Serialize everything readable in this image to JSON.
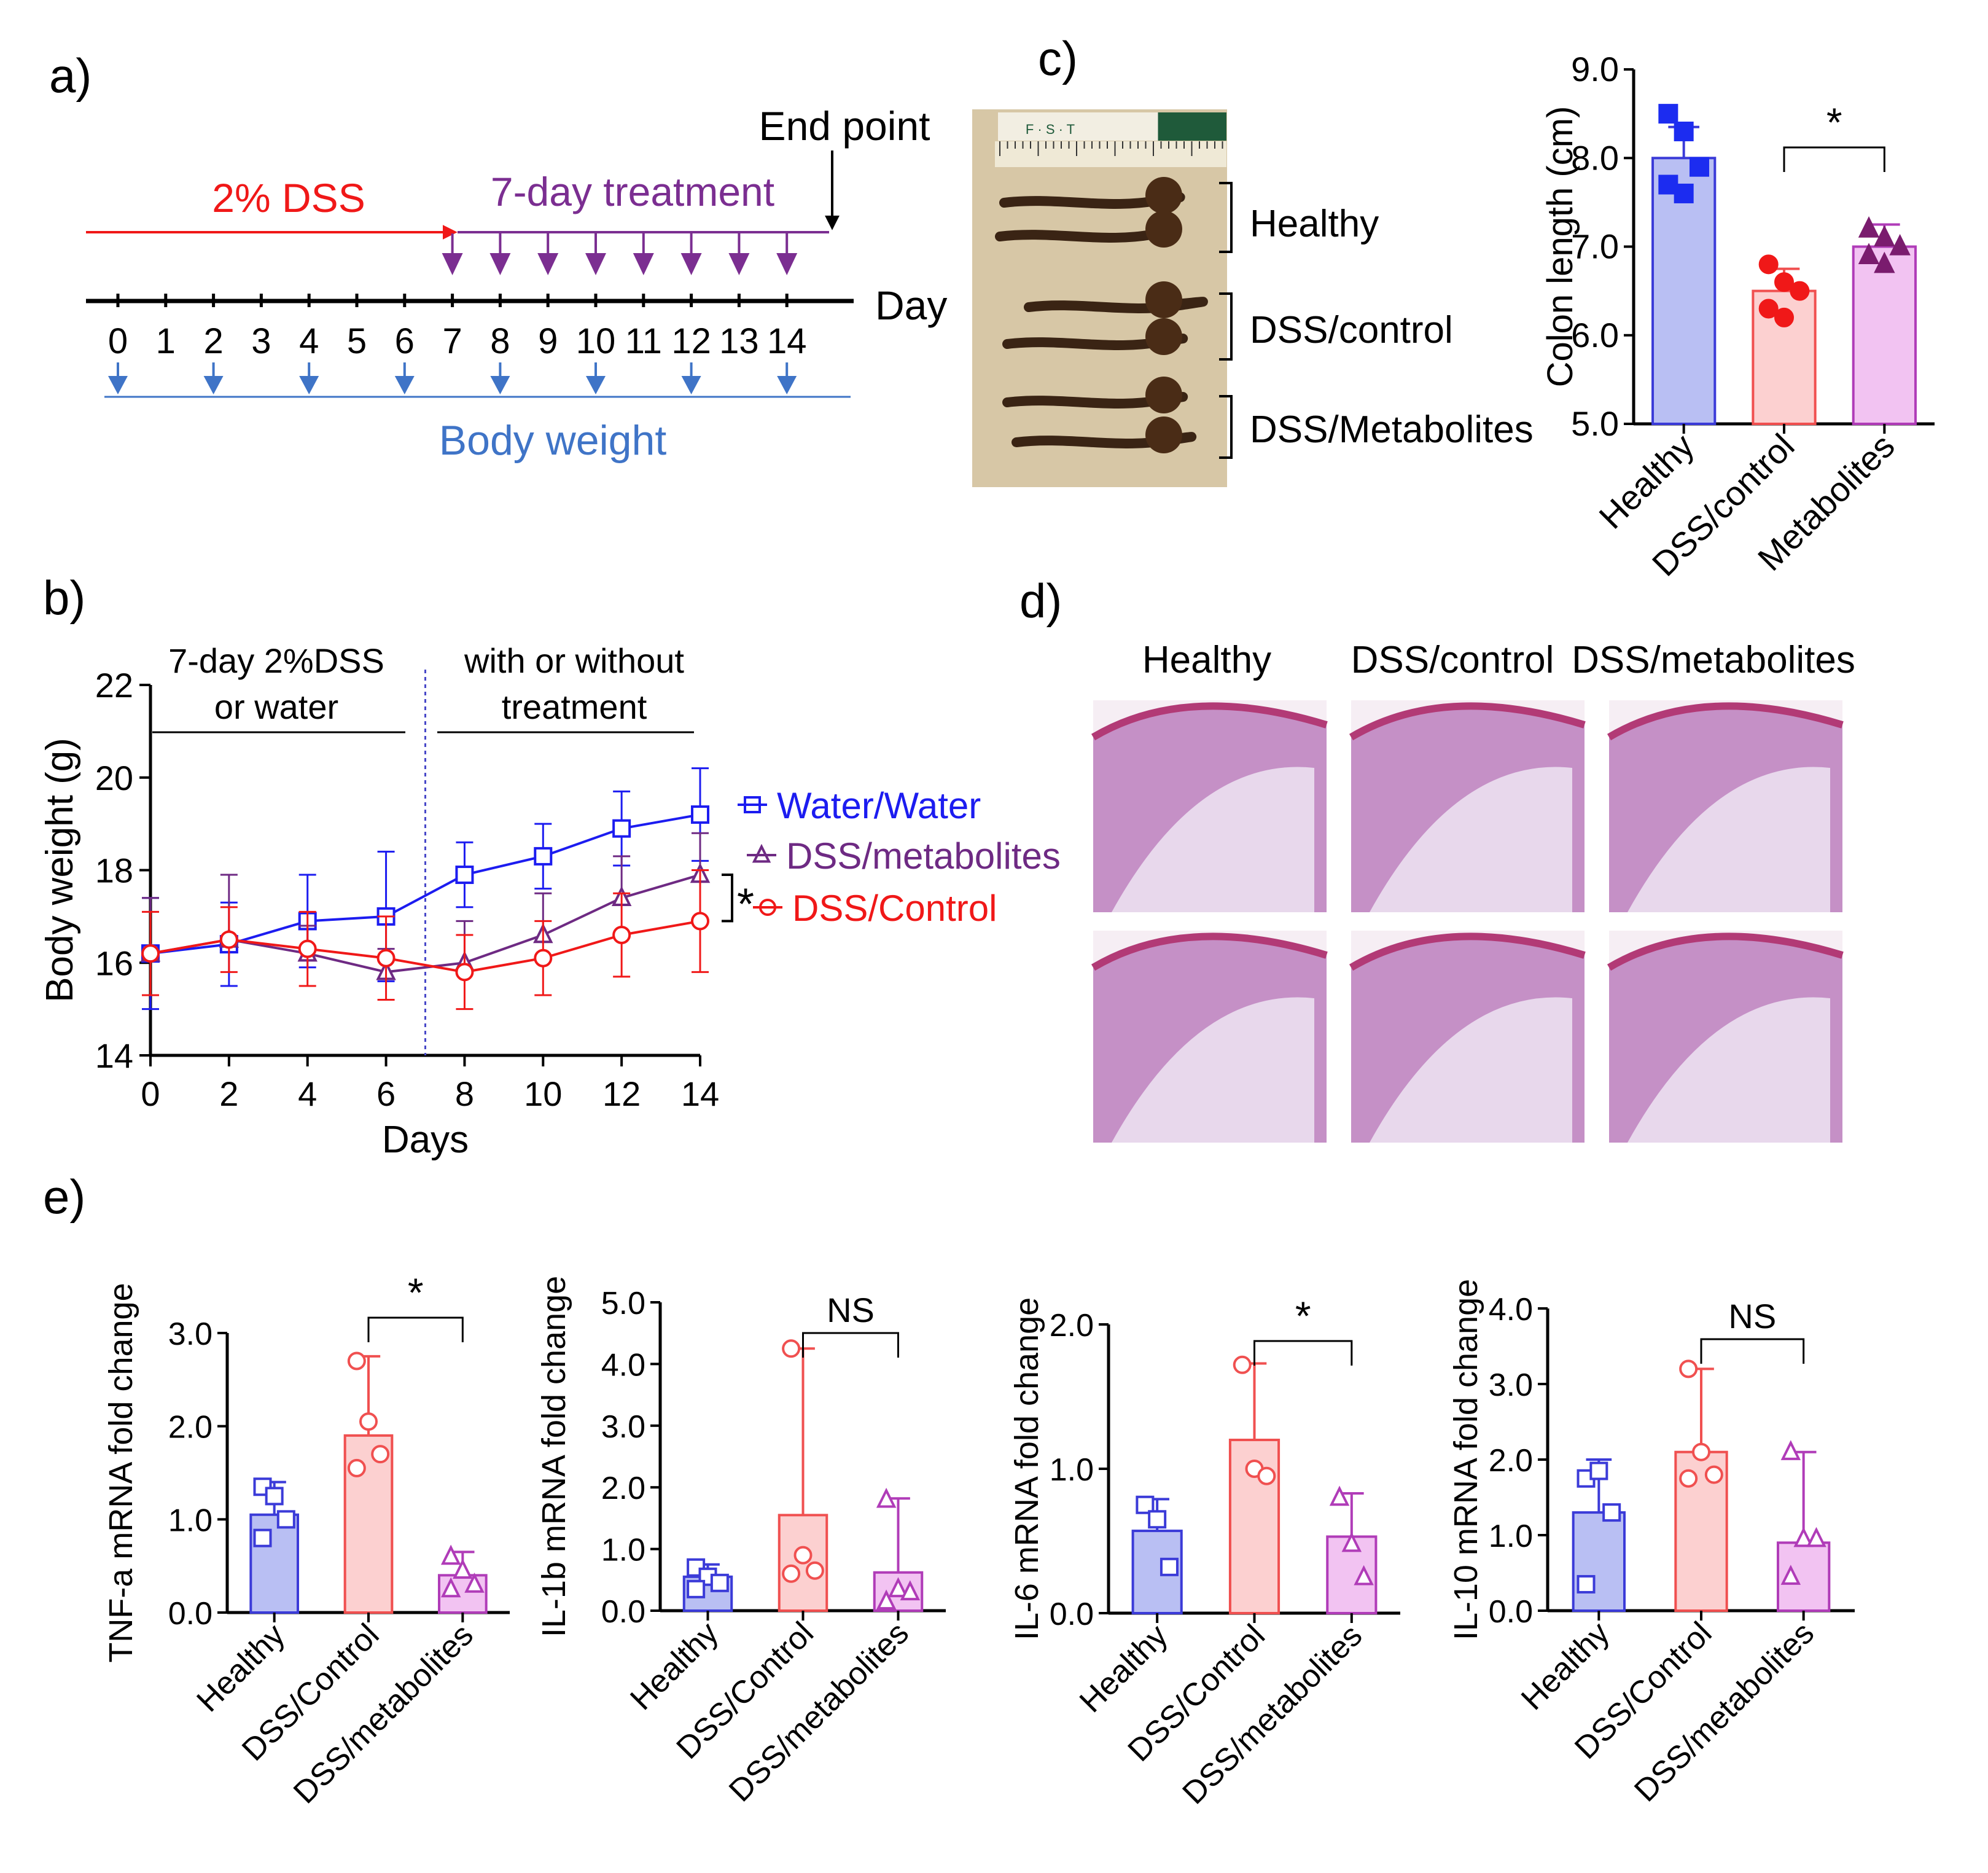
{
  "colors": {
    "dss": "#f01818",
    "treat": "#7b2e91",
    "blue": "#3f74c7",
    "black": "#000000",
    "healthy_fill": "#b9bff3",
    "healthy_line": "#3b3bd8",
    "dss_fill": "#fcd0d0",
    "dss_line": "#f05050",
    "met_fill": "#f2c3f2",
    "met_line": "#b03cb8"
  },
  "panel_a": {
    "label": "a)",
    "dss_label": "2% DSS",
    "treat_label": "7-day treatment",
    "end_label": "End point",
    "axis_label": "Day",
    "weight_label": "Body weight",
    "days": [
      "0",
      "1",
      "2",
      "3",
      "4",
      "5",
      "6",
      "7",
      "8",
      "9",
      "10",
      "11",
      "12",
      "13",
      "14"
    ],
    "treatment_days": [
      7,
      8,
      9,
      10,
      11,
      12,
      13,
      14
    ],
    "weight_days": [
      0,
      2,
      4,
      6,
      8,
      10,
      12,
      14
    ]
  },
  "panel_b": {
    "label": "b)",
    "phase1_line1": "7-day 2%DSS",
    "phase1_line2": "or water",
    "phase2_line1": "with or without",
    "phase2_line2": "treatment",
    "significance": "*"
  },
  "panel_c": {
    "label": "c)",
    "ruler_brand": "F · S · T",
    "groups": [
      "Healthy",
      "DSS/control",
      "DSS/Metabolites"
    ],
    "significance": "*"
  },
  "panel_d": {
    "label": "d)",
    "columns": [
      "Healthy",
      "DSS/control",
      "DSS/metabolites"
    ]
  },
  "panel_e": {
    "label": "e)"
  },
  "chart_data": [
    {
      "id": "b",
      "type": "line",
      "xlabel": "Days",
      "ylabel": "Body weight (g)",
      "x": [
        0,
        2,
        4,
        6,
        8,
        10,
        12,
        14
      ],
      "xlim": [
        0,
        14
      ],
      "ylim": [
        14,
        22
      ],
      "xticks": [
        "0",
        "2",
        "4",
        "6",
        "8",
        "10",
        "12",
        "14"
      ],
      "yticks": [
        "14",
        "16",
        "18",
        "20",
        "22"
      ],
      "treatment_start_day": 7,
      "series": [
        {
          "name": "Water/Water",
          "marker": "square",
          "color": "#1c1cf0",
          "values": [
            16.2,
            16.4,
            16.9,
            17.0,
            17.9,
            18.3,
            18.9,
            19.2
          ],
          "err": [
            1.2,
            0.9,
            1.0,
            1.4,
            0.7,
            0.7,
            0.8,
            1.0
          ]
        },
        {
          "name": "DSS/metabolites",
          "marker": "triangle",
          "color": "#6e2a83",
          "values": [
            16.2,
            16.5,
            16.2,
            15.8,
            16.0,
            16.6,
            17.4,
            17.9
          ],
          "err": [
            1.2,
            1.4,
            0.6,
            0.5,
            0.9,
            0.9,
            0.9,
            0.9
          ]
        },
        {
          "name": "DSS/Control",
          "marker": "circle",
          "color": "#f01818",
          "values": [
            16.2,
            16.5,
            16.3,
            16.1,
            15.8,
            16.1,
            16.6,
            16.9
          ],
          "err": [
            0.9,
            0.7,
            0.8,
            0.9,
            0.8,
            0.8,
            0.9,
            1.1
          ]
        }
      ]
    },
    {
      "id": "c",
      "type": "bar",
      "ylabel": "Colon length (cm)",
      "categories": [
        "Healthy",
        "DSS/control",
        "Metabolites"
      ],
      "values": [
        8.0,
        6.5,
        7.0
      ],
      "err": [
        0.35,
        0.25,
        0.25
      ],
      "points": [
        [
          8.5,
          8.3,
          7.9,
          7.7,
          7.6
        ],
        [
          6.8,
          6.6,
          6.5,
          6.3,
          6.2
        ],
        [
          7.2,
          7.1,
          7.0,
          6.9,
          6.8
        ]
      ],
      "ylim": [
        5.0,
        9.0
      ],
      "yticks": [
        "5.0",
        "6.0",
        "7.0",
        "8.0",
        "9.0"
      ],
      "comparison": {
        "from": 1,
        "to": 2,
        "label": "*"
      }
    },
    {
      "id": "e1",
      "type": "bar",
      "ylabel": "TNF-a mRNA fold change",
      "categories": [
        "Healthy",
        "DSS/Control",
        "DSS/metabolites"
      ],
      "values": [
        1.05,
        1.9,
        0.4
      ],
      "err": [
        0.35,
        0.85,
        0.25
      ],
      "points": [
        [
          1.35,
          1.25,
          1.0,
          0.8
        ],
        [
          2.7,
          2.05,
          1.7,
          1.55
        ],
        [
          0.6,
          0.45,
          0.3,
          0.25
        ]
      ],
      "ylim": [
        0,
        3.0
      ],
      "yticks": [
        "0.0",
        "1.0",
        "2.0",
        "3.0"
      ],
      "comparison": {
        "from": 1,
        "to": 2,
        "label": "*"
      }
    },
    {
      "id": "e2",
      "type": "bar",
      "ylabel": "IL-1b mRNA fold change",
      "categories": [
        "Healthy",
        "DSS/Control",
        "DSS/metabolites"
      ],
      "values": [
        0.55,
        1.55,
        0.62
      ],
      "err": [
        0.2,
        2.7,
        1.2
      ],
      "points": [
        [
          0.7,
          0.55,
          0.45,
          0.35
        ],
        [
          4.25,
          0.9,
          0.65,
          0.6
        ],
        [
          1.8,
          0.35,
          0.3,
          0.15
        ]
      ],
      "ylim": [
        0,
        5.0
      ],
      "yticks": [
        "0.0",
        "1.0",
        "2.0",
        "3.0",
        "4.0",
        "5.0"
      ],
      "comparison": {
        "from": 1,
        "to": 2,
        "label": "NS"
      }
    },
    {
      "id": "e3",
      "type": "bar",
      "ylabel": "IL-6 mRNA fold change",
      "categories": [
        "Healthy",
        "DSS/Control",
        "DSS/metabolites"
      ],
      "values": [
        0.57,
        1.2,
        0.53
      ],
      "err": [
        0.22,
        0.53,
        0.3
      ],
      "points": [
        [
          0.75,
          0.65,
          0.32
        ],
        [
          1.72,
          1.0,
          0.95
        ],
        [
          0.8,
          0.48,
          0.25
        ]
      ],
      "ylim": [
        0,
        2.0
      ],
      "yticks": [
        "0.0",
        "1.0",
        "2.0"
      ],
      "comparison": {
        "from": 1,
        "to": 2,
        "label": "*"
      }
    },
    {
      "id": "e4",
      "type": "bar",
      "ylabel": "IL-10 mRNA fold change",
      "categories": [
        "Healthy",
        "DSS/Control",
        "DSS/metabolites"
      ],
      "values": [
        1.3,
        2.1,
        0.9
      ],
      "err": [
        0.7,
        1.1,
        1.2
      ],
      "points": [
        [
          1.75,
          1.85,
          1.3,
          0.35
        ],
        [
          3.2,
          2.1,
          1.8,
          1.75
        ],
        [
          2.1,
          0.95,
          0.95,
          0.45
        ]
      ],
      "ylim": [
        0,
        4.0
      ],
      "yticks": [
        "0.0",
        "1.0",
        "2.0",
        "3.0",
        "4.0"
      ],
      "comparison": {
        "from": 1,
        "to": 2,
        "label": "NS"
      }
    }
  ]
}
